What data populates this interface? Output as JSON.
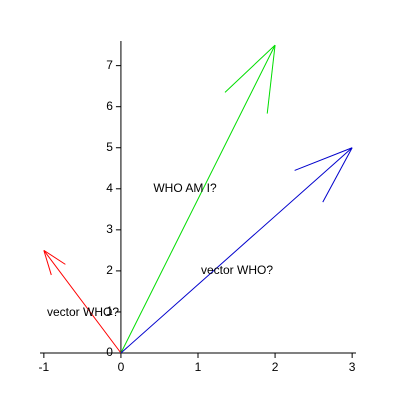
{
  "chart_data": {
    "type": "vector",
    "vectors": [
      {
        "x": -1,
        "y": 2.5,
        "color": "#ff0000"
      },
      {
        "x": 2,
        "y": 7.5,
        "color": "#00dd00"
      },
      {
        "x": 3,
        "y": 5,
        "color": "#0000cc"
      }
    ],
    "annotations": [
      "WHO AM I?",
      "vector WHO?",
      "vector WHO?"
    ],
    "xlim": [
      -1.05,
      3.05
    ],
    "ylim": [
      0,
      7.6
    ],
    "xticks": [
      -1,
      0,
      1,
      2,
      3
    ],
    "yticks": [
      0,
      1,
      2,
      3,
      4,
      5,
      6,
      7
    ]
  }
}
